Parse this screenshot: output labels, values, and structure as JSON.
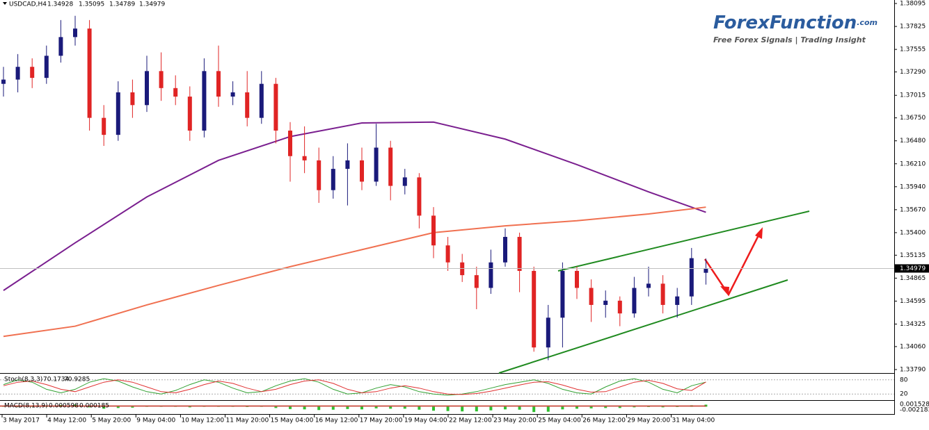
{
  "chart_data": {
    "type": "candlestick",
    "symbol": "USDCAD,H4",
    "bull_color": "#1a1a7a",
    "bear_color": "#e02424",
    "open": [
      1.3715,
      1.372,
      1.3735,
      1.3722,
      1.3748,
      1.377,
      1.378,
      1.3675,
      1.3655,
      1.3705,
      1.369,
      1.373,
      1.371,
      1.37,
      1.366,
      1.373,
      1.37,
      1.3705,
      1.3675,
      1.3715,
      1.366,
      1.363,
      1.3625,
      1.359,
      1.3615,
      1.3625,
      1.36,
      1.364,
      1.3595,
      1.3605,
      1.356,
      1.3525,
      1.3505,
      1.349,
      1.3475,
      1.3505,
      1.3535,
      1.3495,
      1.3405,
      1.344,
      1.3495,
      1.3475,
      1.3455,
      1.346,
      1.3445,
      1.3475,
      1.348,
      1.3455,
      1.3465,
      1.34928
    ],
    "high": [
      1.3735,
      1.375,
      1.3745,
      1.376,
      1.379,
      1.3795,
      1.379,
      1.369,
      1.3718,
      1.372,
      1.3748,
      1.3752,
      1.3725,
      1.3712,
      1.3745,
      1.376,
      1.3718,
      1.373,
      1.373,
      1.3722,
      1.367,
      1.3665,
      1.364,
      1.363,
      1.3645,
      1.364,
      1.3668,
      1.3648,
      1.3615,
      1.361,
      1.357,
      1.3535,
      1.3515,
      1.35,
      1.352,
      1.3545,
      1.354,
      1.35,
      1.3455,
      1.3505,
      1.35,
      1.3485,
      1.3472,
      1.3465,
      1.3488,
      1.35,
      1.349,
      1.3475,
      1.3522,
      1.35095
    ],
    "low": [
      1.37,
      1.3705,
      1.371,
      1.3715,
      1.374,
      1.376,
      1.366,
      1.3642,
      1.3648,
      1.3675,
      1.3682,
      1.3695,
      1.369,
      1.3648,
      1.3652,
      1.3688,
      1.369,
      1.3665,
      1.3668,
      1.3645,
      1.36,
      1.361,
      1.3575,
      1.358,
      1.3572,
      1.359,
      1.3595,
      1.3578,
      1.3585,
      1.3545,
      1.351,
      1.3495,
      1.3482,
      1.345,
      1.3468,
      1.35,
      1.347,
      1.34,
      1.339,
      1.3405,
      1.3462,
      1.3435,
      1.344,
      1.343,
      1.344,
      1.3465,
      1.3445,
      1.344,
      1.3455,
      1.34789
    ],
    "close": [
      1.372,
      1.3735,
      1.3722,
      1.3748,
      1.377,
      1.378,
      1.3675,
      1.3655,
      1.3705,
      1.369,
      1.373,
      1.371,
      1.37,
      1.366,
      1.373,
      1.37,
      1.3705,
      1.3675,
      1.3715,
      1.366,
      1.363,
      1.3625,
      1.359,
      1.3615,
      1.3625,
      1.36,
      1.364,
      1.3595,
      1.3605,
      1.356,
      1.3525,
      1.3505,
      1.349,
      1.3475,
      1.3505,
      1.3535,
      1.3495,
      1.3405,
      1.344,
      1.3495,
      1.3475,
      1.3455,
      1.346,
      1.3445,
      1.3475,
      1.348,
      1.3455,
      1.3465,
      1.351,
      1.34979
    ],
    "moving_averages": [
      {
        "color": "#7a1f8f",
        "x": [
          0,
          5,
          10,
          15,
          20,
          25,
          30,
          35,
          40,
          45,
          49
        ],
        "values": [
          1.3472,
          1.3528,
          1.3582,
          1.3625,
          1.3653,
          1.3669,
          1.367,
          1.365,
          1.362,
          1.3588,
          1.3564
        ]
      },
      {
        "color": "#f07050",
        "x": [
          0,
          5,
          10,
          15,
          20,
          25,
          30,
          35,
          40,
          45,
          49
        ],
        "values": [
          1.3418,
          1.343,
          1.3455,
          1.3478,
          1.35,
          1.352,
          1.354,
          1.3548,
          1.3554,
          1.3562,
          1.357
        ]
      }
    ],
    "ylim": [
      1.33749,
      1.38136
    ],
    "yticks": [
      1.38095,
      1.37825,
      1.37555,
      {
        "value": 1.3729,
        "label": "1.37290"
      },
      1.37015,
      {
        "value": 1.3675,
        "label": "1.36750"
      },
      {
        "value": 1.3648,
        "label": "1.36480"
      },
      {
        "value": 1.3621,
        "label": "1.36210"
      },
      {
        "value": 1.3594,
        "label": "1.35940"
      },
      {
        "value": 1.3567,
        "label": "1.35670"
      },
      {
        "value": 1.354,
        "label": "1.35400"
      },
      1.35135,
      1.34865,
      1.34595,
      1.34325,
      {
        "value": 1.3406,
        "label": "1.34060"
      },
      {
        "value": 1.3379,
        "label": "1.33790"
      }
    ],
    "x_labels": [
      "3 May 2017",
      "4 May 12:00",
      "5 May 20:00",
      "9 May 04:00",
      "10 May 12:00",
      "11 May 20:00",
      "15 May 04:00",
      "16 May 12:00",
      "17 May 20:00",
      "19 May 04:00",
      "22 May 12:00",
      "23 May 20:00",
      "25 May 04:00",
      "26 May 12:00",
      "29 May 20:00",
      "31 May 04:00"
    ],
    "stochastic": {
      "name": "Stoch(8,3,3)",
      "main": [
        60,
        80,
        70,
        40,
        25,
        40,
        70,
        85,
        75,
        50,
        30,
        20,
        35,
        60,
        80,
        70,
        45,
        25,
        30,
        55,
        75,
        85,
        70,
        40,
        20,
        25,
        45,
        60,
        50,
        30,
        20,
        15,
        20,
        30,
        45,
        60,
        70,
        80,
        65,
        40,
        25,
        20,
        50,
        75,
        85,
        70,
        40,
        25,
        55,
        70.1734
      ],
      "signal": [
        55,
        70,
        75,
        60,
        40,
        30,
        50,
        70,
        80,
        70,
        50,
        30,
        25,
        40,
        60,
        75,
        65,
        45,
        30,
        40,
        60,
        75,
        80,
        65,
        40,
        25,
        30,
        45,
        55,
        45,
        30,
        20,
        18,
        22,
        32,
        45,
        58,
        70,
        72,
        58,
        40,
        28,
        30,
        50,
        70,
        78,
        65,
        42,
        35,
        70.9285
      ],
      "ylim": [
        0,
        100
      ],
      "yticks": [
        80,
        20
      ]
    },
    "macd": {
      "name": "MACD(8,13,9)",
      "values": [
        0.0002,
        0.0003,
        0.0001,
        0.0003,
        0.0005,
        0.0006,
        -0.0002,
        -0.0006,
        -0.0004,
        -0.0003,
        0.0001,
        0.0002,
        0.0001,
        -0.0002,
        0.0001,
        0.0002,
        0.0001,
        0,
        0.0001,
        -0.0004,
        -0.0007,
        -0.0008,
        -0.001,
        -0.0009,
        -0.0007,
        -0.0008,
        -0.0005,
        -0.0006,
        -0.0006,
        -0.0009,
        -0.0012,
        -0.0013,
        -0.0014,
        -0.0014,
        -0.0011,
        -0.0008,
        -0.0009,
        -0.0016,
        -0.0015,
        -0.0008,
        -0.0006,
        -0.0005,
        -0.0004,
        -0.0004,
        -0.0002,
        -0.0001,
        -0.0002,
        -0.0001,
        0.0004,
        0.000598
      ],
      "signal_value": 0.000185,
      "ylim": [
        -0.002183,
        0.001528
      ],
      "yticks": [
        0.001528,
        -0.002183
      ]
    }
  },
  "logo": {
    "title": "ForexFunction",
    "domain": ".com",
    "tagline": "Free Forex Signals | Trading Insight"
  }
}
